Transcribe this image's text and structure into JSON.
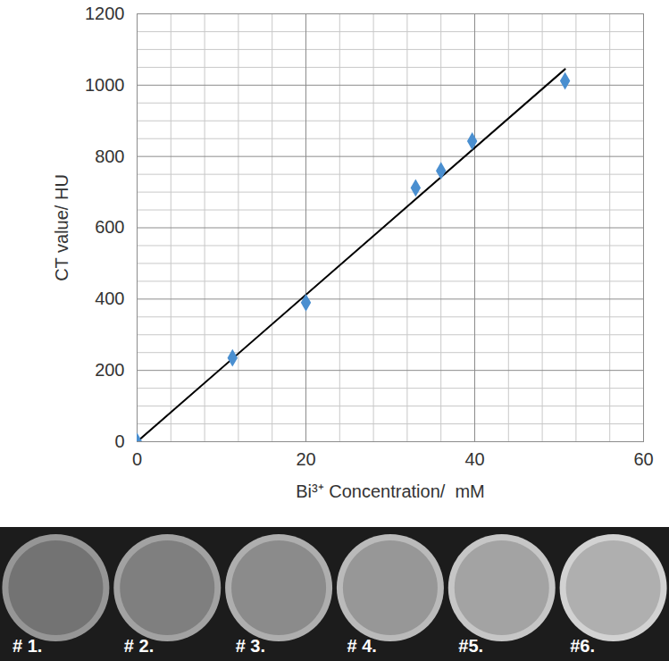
{
  "chart_data": {
    "type": "scatter",
    "x_label": "Bi³⁺ Concentration/  mM",
    "y_label": "CT value/ HU",
    "x": [
      0,
      11.3,
      20,
      33,
      36,
      39.7,
      50.7
    ],
    "values": [
      0,
      235,
      390,
      712,
      760,
      843,
      1012
    ],
    "color": "#4a8fd0",
    "marker": "diamond",
    "fit_line": {
      "x": [
        0,
        50.7
      ],
      "values": [
        0,
        1045
      ],
      "color": "#000000"
    },
    "xlim": [
      0,
      60
    ],
    "ylim": [
      0,
      1200
    ],
    "xticks": [
      0,
      20,
      40,
      60
    ],
    "yticks": [
      0,
      200,
      400,
      600,
      800,
      1000,
      1200
    ],
    "minor_xticks": [
      4,
      8,
      12,
      16,
      24,
      28,
      32,
      36,
      44,
      48,
      52,
      56
    ],
    "minor_yticks": [
      50,
      100,
      150,
      250,
      300,
      350,
      450,
      500,
      550,
      650,
      700,
      750,
      850,
      900,
      950,
      1050,
      1100,
      1150
    ],
    "grid": true
  },
  "image_panel": {
    "labels": [
      "# 1.",
      "# 2.",
      "# 3.",
      "# 4.",
      "#5.",
      "#6."
    ]
  }
}
